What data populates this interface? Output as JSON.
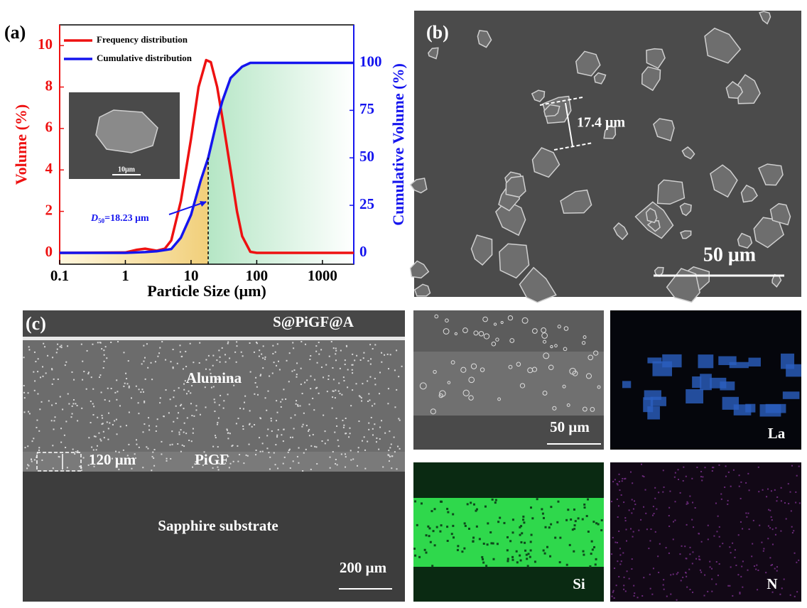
{
  "chart_data": {
    "type": "line",
    "panel_label": "(a)",
    "xlabel": "Particle Size (μm)",
    "ylabel": "Volume (%)",
    "y2label": "Cumulative Volume (%)",
    "xlog": true,
    "xlim": [
      0.1,
      3000
    ],
    "xticks": [
      0.1,
      1,
      10,
      100,
      1000
    ],
    "ylim": [
      -0.55,
      11
    ],
    "yticks": [
      0,
      2,
      4,
      6,
      8,
      10
    ],
    "y2lim": [
      -6,
      120
    ],
    "y2ticks": [
      0,
      25,
      50,
      75,
      100
    ],
    "series": [
      {
        "name": "Frequency distribution",
        "color": "#ee1111",
        "axis": "y",
        "x": [
          0.1,
          1,
          1.5,
          2,
          3,
          4,
          5,
          7,
          10,
          13,
          17,
          20,
          25,
          30,
          40,
          50,
          60,
          80,
          100,
          3000
        ],
        "values": [
          0,
          0.02,
          0.15,
          0.2,
          0.1,
          0.2,
          0.6,
          2.5,
          5.5,
          8,
          9.3,
          9.2,
          8,
          6.5,
          4,
          2,
          0.8,
          0.05,
          0,
          0
        ]
      },
      {
        "name": "Cumulative distribution",
        "color": "#1515ee",
        "axis": "y2",
        "x": [
          0.1,
          1,
          2,
          3,
          5,
          7,
          10,
          14,
          18.23,
          25,
          30,
          40,
          60,
          80,
          3000
        ],
        "values": [
          0,
          0,
          0.4,
          0.8,
          2,
          8,
          20,
          38,
          50,
          70,
          80,
          92,
          98,
          100,
          100
        ]
      }
    ],
    "legend": "upper left",
    "d50": {
      "x": 18.23,
      "prefix": "D",
      "sub": "50",
      "label": "=18.23 μm"
    },
    "inset_scale": "10μm"
  },
  "panels": {
    "b": {
      "label": "(b)",
      "measure": "17.4 μm",
      "scale": "50 μm"
    },
    "c": {
      "label": "(c)",
      "layers": [
        "S@PiGF@A",
        "Alumina",
        "PiGF",
        "Sapphire substrate"
      ],
      "thickness": "120 μm",
      "scale": "200 μm"
    },
    "eds": {
      "scale": "50 μm",
      "elements": [
        "La",
        "Si",
        "N"
      ]
    }
  }
}
